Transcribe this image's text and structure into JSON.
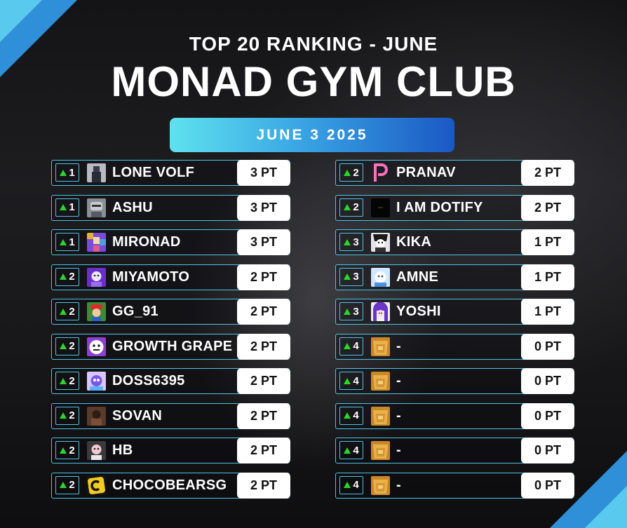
{
  "header": {
    "subtitle": "TOP 20 RANKING - JUNE",
    "title": "MONAD GYM CLUB",
    "date": "JUNE 3 2025"
  },
  "colors": {
    "accent_border": "#4fc3e6",
    "rank_arrow": "#2bd62b",
    "banner_start": "#5fe2ee",
    "banner_end": "#1a58c4",
    "corner_accent": "#2f8fd8"
  },
  "left_column": [
    {
      "rank": "1",
      "name": "LONE VOLF",
      "points": "3 PT",
      "avatar_icon": "avatar-dark-figure"
    },
    {
      "rank": "1",
      "name": "ASHU",
      "points": "3 PT",
      "avatar_icon": "avatar-gray-character"
    },
    {
      "rank": "1",
      "name": "MIRONAD",
      "points": "3 PT",
      "avatar_icon": "avatar-purple-mosaic"
    },
    {
      "rank": "2",
      "name": "MIYAMOTO",
      "points": "2 PT",
      "avatar_icon": "avatar-purple-character"
    },
    {
      "rank": "2",
      "name": "GG_91",
      "points": "2 PT",
      "avatar_icon": "avatar-red-cap-character"
    },
    {
      "rank": "2",
      "name": "GROWTH GRAPE",
      "points": "2 PT",
      "avatar_icon": "avatar-white-face"
    },
    {
      "rank": "2",
      "name": "DOSS6395",
      "points": "2 PT",
      "avatar_icon": "avatar-blue-purple-character"
    },
    {
      "rank": "2",
      "name": "SOVAN",
      "points": "2 PT",
      "avatar_icon": "avatar-brown-figure"
    },
    {
      "rank": "2",
      "name": "HB",
      "points": "2 PT",
      "avatar_icon": "avatar-pink-character"
    },
    {
      "rank": "2",
      "name": "CHOCOBEARSG",
      "points": "2 PT",
      "avatar_icon": "avatar-yellow-c-logo"
    }
  ],
  "right_column": [
    {
      "rank": "2",
      "name": "PRANAV",
      "points": "2 PT",
      "avatar_icon": "avatar-pink-p-letter"
    },
    {
      "rank": "2",
      "name": "I AM DOTIFY",
      "points": "2 PT",
      "avatar_icon": "avatar-black-square"
    },
    {
      "rank": "3",
      "name": "KIKA",
      "points": "1 PT",
      "avatar_icon": "avatar-bw-character"
    },
    {
      "rank": "3",
      "name": "AMNE",
      "points": "1 PT",
      "avatar_icon": "avatar-blue-white-character"
    },
    {
      "rank": "3",
      "name": "YOSHI",
      "points": "1 PT",
      "avatar_icon": "avatar-purple-hair-character"
    },
    {
      "rank": "4",
      "name": "-",
      "points": "0 PT",
      "avatar_icon": "avatar-gold-placeholder"
    },
    {
      "rank": "4",
      "name": "-",
      "points": "0 PT",
      "avatar_icon": "avatar-gold-placeholder"
    },
    {
      "rank": "4",
      "name": "-",
      "points": "0 PT",
      "avatar_icon": "avatar-gold-placeholder"
    },
    {
      "rank": "4",
      "name": "-",
      "points": "0 PT",
      "avatar_icon": "avatar-gold-placeholder"
    },
    {
      "rank": "4",
      "name": "-",
      "points": "0 PT",
      "avatar_icon": "avatar-gold-placeholder"
    }
  ]
}
